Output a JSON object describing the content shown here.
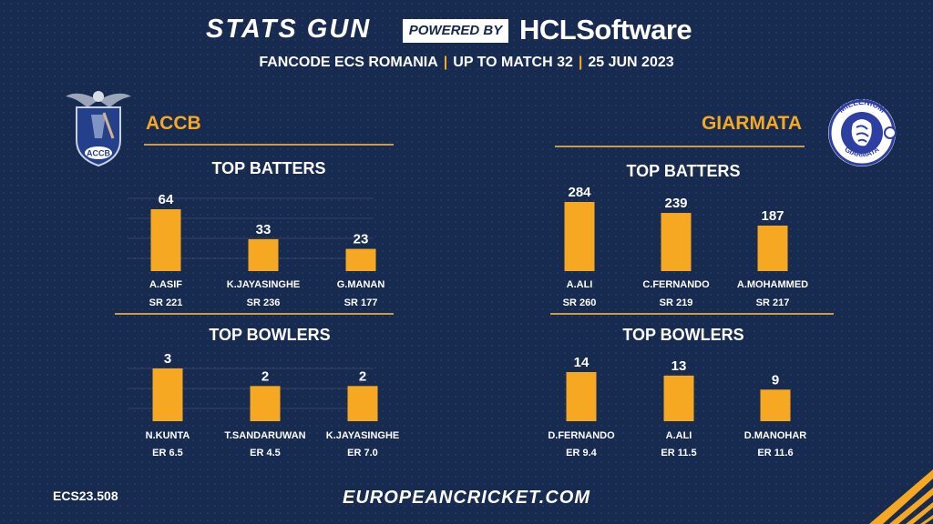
{
  "header": {
    "brand": "STATS GUN",
    "powered_by": "POWERED BY",
    "sponsor": "HCLSoftware",
    "subtitle_parts": [
      "FANCODE ECS ROMANIA",
      "UP TO MATCH 32",
      "25 JUN 2023"
    ]
  },
  "teams": {
    "left": {
      "name": "ACCB",
      "logo_text": "ACCB"
    },
    "right": {
      "name": "GIARMATA",
      "logo_text_top": "MILLENIUM",
      "logo_text_bottom": "GIARMATA"
    }
  },
  "footer": {
    "code": "ECS23.508",
    "url": "EUROPEANCRICKET.COM"
  },
  "colors": {
    "background": "#172a4f",
    "accent": "#f7a823",
    "text": "#ffffff"
  },
  "chart_data": [
    {
      "type": "bar",
      "title": "TOP BATTERS",
      "team": "ACCB",
      "categories": [
        "A.ASIF",
        "K.JAYASINGHE",
        "G.MANAN"
      ],
      "values": [
        64,
        33,
        23
      ],
      "sublabels": [
        "SR 221",
        "SR 236",
        "SR 177"
      ],
      "ylim": [
        0,
        64
      ],
      "grid": true
    },
    {
      "type": "bar",
      "title": "TOP BOWLERS",
      "team": "ACCB",
      "categories": [
        "N.KUNTA",
        "T.SANDARUWAN",
        "K.JAYASINGHE"
      ],
      "values": [
        3,
        2,
        2
      ],
      "sublabels": [
        "ER 6.5",
        "ER 4.5",
        "ER 7.0"
      ],
      "ylim": [
        0,
        3
      ],
      "grid": true
    },
    {
      "type": "bar",
      "title": "TOP BATTERS",
      "team": "GIARMATA",
      "categories": [
        "A.ALI",
        "C.FERNANDO",
        "A.MOHAMMED"
      ],
      "values": [
        284,
        239,
        187
      ],
      "sublabels": [
        "SR 260",
        "SR 219",
        "SR 217"
      ],
      "ylim": [
        0,
        284
      ],
      "grid": false
    },
    {
      "type": "bar",
      "title": "TOP BOWLERS",
      "team": "GIARMATA",
      "categories": [
        "D.FERNANDO",
        "A.ALI",
        "D.MANOHAR"
      ],
      "values": [
        14,
        13,
        9
      ],
      "sublabels": [
        "ER 9.4",
        "ER 11.5",
        "ER 11.6"
      ],
      "ylim": [
        0,
        14
      ],
      "grid": false
    }
  ]
}
